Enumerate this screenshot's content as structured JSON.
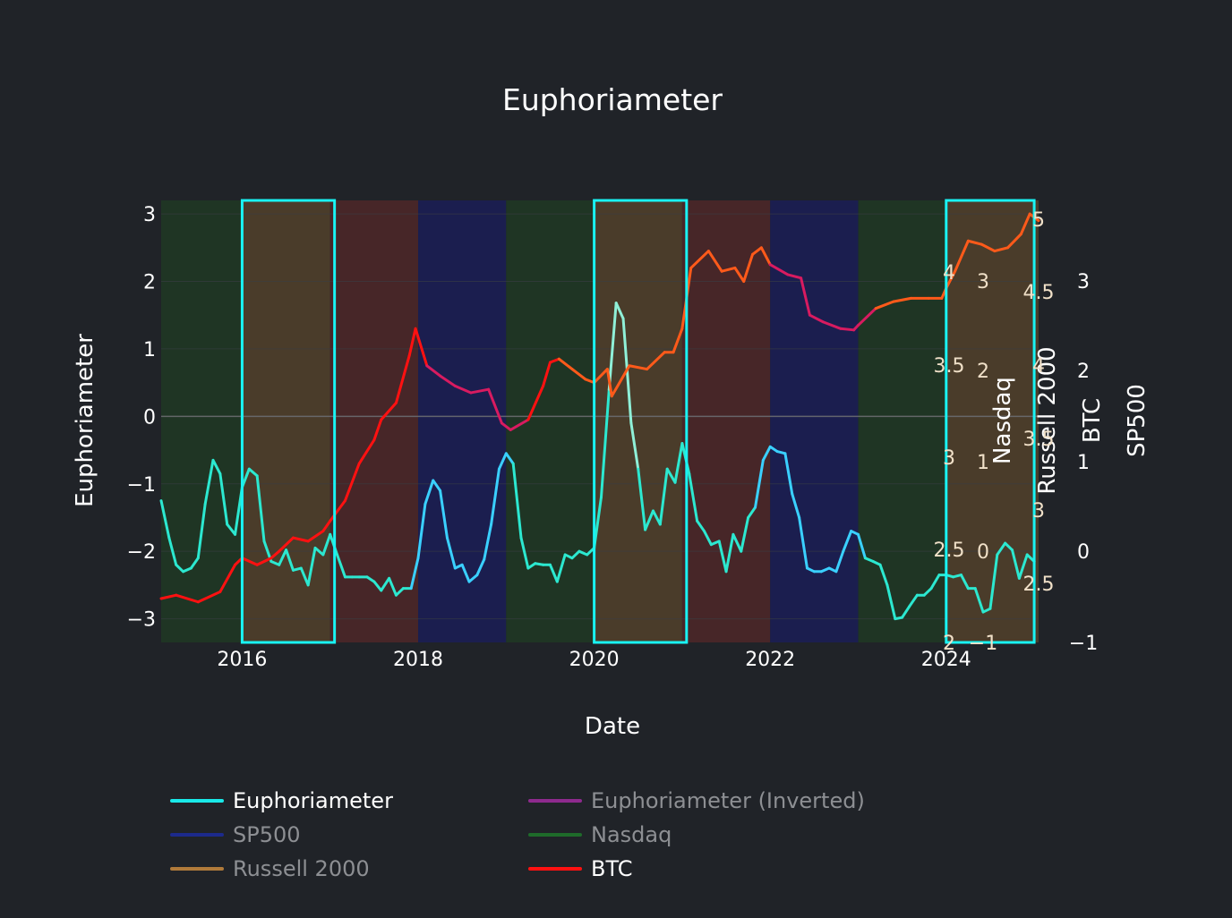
{
  "chart_data": {
    "type": "line",
    "title": "Euphoriameter",
    "xlabel": "Date",
    "ylabel": "Euphoriameter",
    "xlim": [
      2015.08,
      2025.05
    ],
    "ylim": [
      -3.35,
      3.2
    ],
    "x_ticks": [
      {
        "v": 2016,
        "label": "2016"
      },
      {
        "v": 2018,
        "label": "2018"
      },
      {
        "v": 2020,
        "label": "2020"
      },
      {
        "v": 2022,
        "label": "2022"
      },
      {
        "v": 2024,
        "label": "2024"
      }
    ],
    "y_ticks": [
      {
        "v": 3,
        "label": "3"
      },
      {
        "v": 2,
        "label": "2"
      },
      {
        "v": 1,
        "label": "1"
      },
      {
        "v": 0,
        "label": "0"
      },
      {
        "v": -1,
        "label": "−1"
      },
      {
        "v": -2,
        "label": "−2"
      },
      {
        "v": -3,
        "label": "−3"
      }
    ],
    "secondary_axes": [
      {
        "title": "Nasdaq",
        "ticks": [
          "4",
          "3.5",
          "3",
          "2.5",
          "2"
        ]
      },
      {
        "title": "Russell 2000",
        "ticks": [
          "3",
          "2",
          "1",
          "0",
          "−1"
        ]
      },
      {
        "title": "BTC",
        "ticks": [
          "5",
          "4.5",
          "4",
          "3.5",
          "3",
          "2.5"
        ]
      },
      {
        "title": "SP500",
        "ticks": [
          "3",
          "2",
          "1",
          "0",
          "−1"
        ]
      }
    ],
    "regime_bands": [
      {
        "start": 2015.08,
        "end": 2016.0,
        "regime": "Nasdaq",
        "color": "#1f3524"
      },
      {
        "start": 2016.0,
        "end": 2017.0,
        "regime": "Russell 2000",
        "color": "#4a3c2a"
      },
      {
        "start": 2017.0,
        "end": 2018.0,
        "regime": "BTC",
        "color": "#472628"
      },
      {
        "start": 2018.0,
        "end": 2019.0,
        "regime": "SP500",
        "color": "#1b1e4f"
      },
      {
        "start": 2019.0,
        "end": 2020.0,
        "regime": "Nasdaq",
        "color": "#1f3524"
      },
      {
        "start": 2020.0,
        "end": 2021.0,
        "regime": "Russell 2000",
        "color": "#4a3c2a"
      },
      {
        "start": 2021.0,
        "end": 2022.0,
        "regime": "BTC",
        "color": "#472628"
      },
      {
        "start": 2022.0,
        "end": 2023.0,
        "regime": "SP500",
        "color": "#1b1e4f"
      },
      {
        "start": 2023.0,
        "end": 2024.0,
        "regime": "Nasdaq",
        "color": "#1f3524"
      },
      {
        "start": 2024.0,
        "end": 2025.05,
        "regime": "Russell 2000",
        "color": "#4a3c2a"
      }
    ],
    "highlight_boxes": [
      {
        "start": 2016.0,
        "end": 2017.05
      },
      {
        "start": 2020.0,
        "end": 2021.05
      },
      {
        "start": 2024.0,
        "end": 2025.0
      }
    ],
    "series": [
      {
        "name": "Euphoriameter",
        "color_scale": [
          "#2ce8d0",
          "#3ad0ff",
          "#8ff0d8"
        ],
        "x": [
          2015.08,
          2015.17,
          2015.25,
          2015.33,
          2015.42,
          2015.5,
          2015.58,
          2015.67,
          2015.75,
          2015.83,
          2015.92,
          2016.0,
          2016.08,
          2016.17,
          2016.25,
          2016.33,
          2016.42,
          2016.5,
          2016.58,
          2016.67,
          2016.75,
          2016.83,
          2016.92,
          2017.0,
          2017.08,
          2017.17,
          2017.25,
          2017.33,
          2017.42,
          2017.5,
          2017.58,
          2017.67,
          2017.75,
          2017.83,
          2017.92,
          2018.0,
          2018.08,
          2018.17,
          2018.25,
          2018.33,
          2018.42,
          2018.5,
          2018.58,
          2018.67,
          2018.75,
          2018.83,
          2018.92,
          2019.0,
          2019.08,
          2019.17,
          2019.25,
          2019.33,
          2019.42,
          2019.5,
          2019.58,
          2019.67,
          2019.75,
          2019.83,
          2019.92,
          2020.0,
          2020.08,
          2020.17,
          2020.25,
          2020.33,
          2020.42,
          2020.5,
          2020.58,
          2020.67,
          2020.75,
          2020.83,
          2020.92,
          2021.0,
          2021.08,
          2021.17,
          2021.25,
          2021.33,
          2021.42,
          2021.5,
          2021.58,
          2021.67,
          2021.75,
          2021.83,
          2021.92,
          2022.0,
          2022.08,
          2022.17,
          2022.25,
          2022.33,
          2022.42,
          2022.5,
          2022.58,
          2022.67,
          2022.75,
          2022.83,
          2022.92,
          2023.0,
          2023.08,
          2023.17,
          2023.25,
          2023.33,
          2023.42,
          2023.5,
          2023.58,
          2023.67,
          2023.75,
          2023.83,
          2023.92,
          2024.0,
          2024.08,
          2024.17,
          2024.25,
          2024.33,
          2024.42,
          2024.5,
          2024.58,
          2024.67,
          2024.75,
          2024.83,
          2024.92,
          2025.0
        ],
        "values": [
          -1.25,
          -1.8,
          -2.2,
          -2.3,
          -2.25,
          -2.1,
          -1.3,
          -0.65,
          -0.85,
          -1.6,
          -1.75,
          -1.05,
          -0.78,
          -0.88,
          -1.85,
          -2.15,
          -2.2,
          -1.98,
          -2.28,
          -2.25,
          -2.5,
          -1.95,
          -2.05,
          -1.75,
          -2.05,
          -2.38,
          -2.38,
          -2.38,
          -2.38,
          -2.45,
          -2.58,
          -2.4,
          -2.65,
          -2.55,
          -2.55,
          -2.1,
          -1.3,
          -0.95,
          -1.1,
          -1.8,
          -2.25,
          -2.2,
          -2.45,
          -2.35,
          -2.12,
          -1.6,
          -0.78,
          -0.55,
          -0.7,
          -1.8,
          -2.25,
          -2.18,
          -2.2,
          -2.2,
          -2.45,
          -2.05,
          -2.1,
          -2.0,
          -2.05,
          -1.95,
          -1.2,
          0.4,
          1.68,
          1.45,
          -0.1,
          -0.78,
          -1.68,
          -1.4,
          -1.6,
          -0.78,
          -0.98,
          -0.4,
          -0.85,
          -1.55,
          -1.7,
          -1.9,
          -1.85,
          -2.3,
          -1.75,
          -2.0,
          -1.5,
          -1.35,
          -0.65,
          -0.45,
          -0.52,
          -0.55,
          -1.15,
          -1.5,
          -2.25,
          -2.3,
          -2.3,
          -2.25,
          -2.3,
          -2.0,
          -1.7,
          -1.75,
          -2.1,
          -2.15,
          -2.2,
          -2.5,
          -3.0,
          -2.98,
          -2.82,
          -2.65,
          -2.65,
          -2.55,
          -2.35,
          -2.35,
          -2.38,
          -2.35,
          -2.55,
          -2.55,
          -2.9,
          -2.85,
          -2.05,
          -1.88,
          -1.98,
          -2.4,
          -2.05,
          -2.15
        ]
      },
      {
        "name": "BTC",
        "color_scale": [
          "#ff1111",
          "#ff5a1a",
          "#d81b60"
        ],
        "x": [
          2015.08,
          2015.25,
          2015.5,
          2015.75,
          2015.92,
          2016.0,
          2016.17,
          2016.33,
          2016.42,
          2016.58,
          2016.75,
          2016.92,
          2017.0,
          2017.17,
          2017.33,
          2017.5,
          2017.58,
          2017.75,
          2017.9,
          2017.97,
          2018.1,
          2018.25,
          2018.42,
          2018.6,
          2018.8,
          2018.95,
          2019.05,
          2019.25,
          2019.42,
          2019.5,
          2019.6,
          2019.75,
          2019.9,
          2020.0,
          2020.15,
          2020.2,
          2020.4,
          2020.6,
          2020.8,
          2020.9,
          2021.0,
          2021.1,
          2021.3,
          2021.45,
          2021.6,
          2021.7,
          2021.8,
          2021.9,
          2022.0,
          2022.2,
          2022.35,
          2022.45,
          2022.6,
          2022.8,
          2022.95,
          2023.0,
          2023.2,
          2023.4,
          2023.6,
          2023.8,
          2023.95,
          2024.0,
          2024.1,
          2024.25,
          2024.4,
          2024.55,
          2024.7,
          2024.85,
          2024.95,
          2025.05
        ],
        "values": [
          -2.7,
          -2.65,
          -2.75,
          -2.6,
          -2.2,
          -2.1,
          -2.2,
          -2.1,
          -2.0,
          -1.8,
          -1.85,
          -1.7,
          -1.55,
          -1.25,
          -0.7,
          -0.35,
          -0.05,
          0.2,
          0.9,
          1.3,
          0.75,
          0.6,
          0.45,
          0.35,
          0.4,
          -0.1,
          -0.2,
          -0.05,
          0.45,
          0.8,
          0.85,
          0.7,
          0.55,
          0.5,
          0.7,
          0.3,
          0.75,
          0.7,
          0.95,
          0.95,
          1.3,
          2.2,
          2.45,
          2.15,
          2.2,
          2.0,
          2.4,
          2.5,
          2.25,
          2.1,
          2.05,
          1.5,
          1.4,
          1.3,
          1.28,
          1.35,
          1.6,
          1.7,
          1.75,
          1.75,
          1.75,
          1.9,
          2.15,
          2.6,
          2.55,
          2.45,
          2.5,
          2.7,
          3.0,
          2.9
        ]
      },
      {
        "name": "Euphoriameter (Inverted)",
        "color": "#8e2a8e",
        "visible": false,
        "values": []
      },
      {
        "name": "SP500",
        "color": "#1c2a8c",
        "visible": false,
        "values": []
      },
      {
        "name": "Nasdaq",
        "color": "#1e6b2a",
        "visible": false,
        "values": []
      },
      {
        "name": "Russell 2000",
        "color": "#b07a3a",
        "visible": false,
        "values": []
      }
    ]
  },
  "legend": [
    {
      "label": "Euphoriameter",
      "color": "#19e9e9",
      "visible": true
    },
    {
      "label": "Euphoriameter (Inverted)",
      "color": "#8e2a8e",
      "visible": false
    },
    {
      "label": "SP500",
      "color": "#1c2a8c",
      "visible": false
    },
    {
      "label": "Nasdaq",
      "color": "#1e6b2a",
      "visible": false
    },
    {
      "label": "Russell 2000",
      "color": "#b07a3a",
      "visible": false
    },
    {
      "label": "BTC",
      "color": "#ff1111",
      "visible": true
    }
  ]
}
